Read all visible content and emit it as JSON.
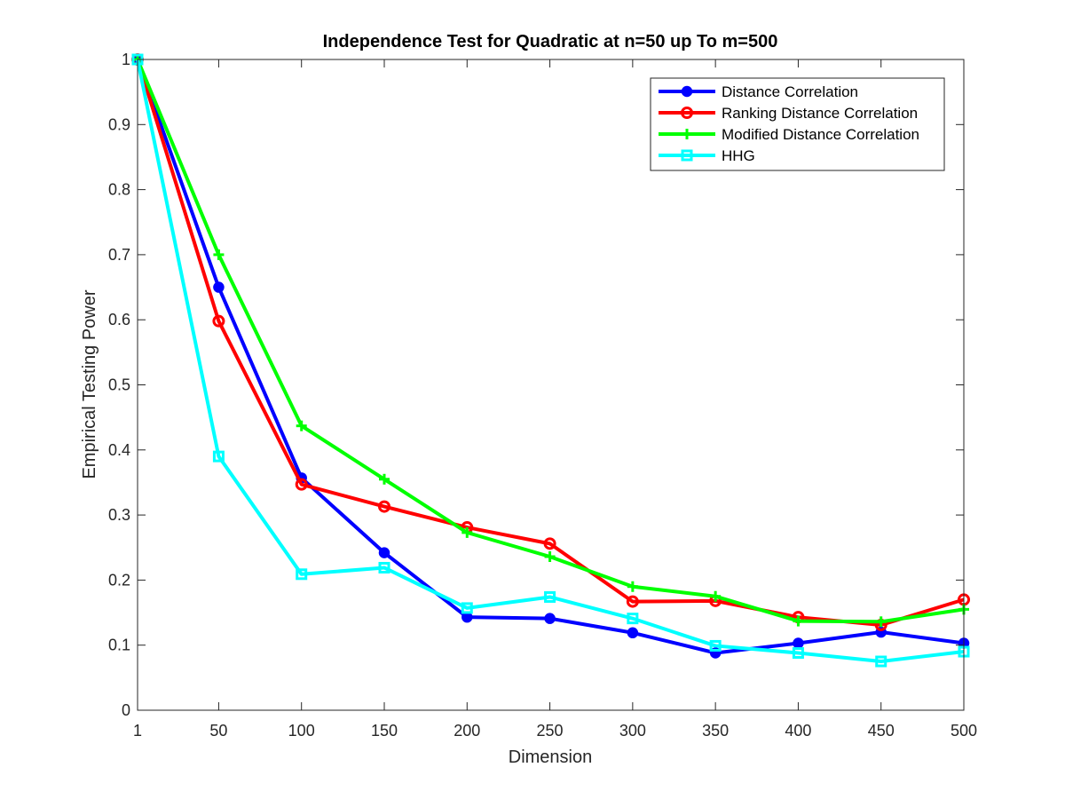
{
  "chart_data": {
    "type": "line",
    "title": "Independence Test for Quadratic at n=50 up To m=500",
    "xlabel": "Dimension",
    "ylabel": "Empirical Testing Power",
    "x": [
      1,
      50,
      100,
      150,
      200,
      250,
      300,
      350,
      400,
      450,
      500
    ],
    "x_ticks": [
      1,
      50,
      100,
      150,
      200,
      250,
      300,
      350,
      400,
      450,
      500
    ],
    "x_tick_labels": [
      "1",
      "50",
      "100",
      "150",
      "200",
      "250",
      "300",
      "350",
      "400",
      "450",
      "500"
    ],
    "y_ticks": [
      0,
      0.1,
      0.2,
      0.3,
      0.4,
      0.5,
      0.6,
      0.7,
      0.8,
      0.9,
      1
    ],
    "y_tick_labels": [
      "0",
      "0.1",
      "0.2",
      "0.3",
      "0.4",
      "0.5",
      "0.6",
      "0.7",
      "0.8",
      "0.9",
      "1"
    ],
    "xlim": [
      1,
      500
    ],
    "ylim": [
      0,
      1
    ],
    "grid": false,
    "legend_position": "top-right",
    "series": [
      {
        "name": "Distance Correlation",
        "color": "#0000ff",
        "marker": "filled-circle",
        "values": [
          1.0,
          0.65,
          0.357,
          0.242,
          0.143,
          0.141,
          0.119,
          0.088,
          0.103,
          0.12,
          0.103
        ]
      },
      {
        "name": "Ranking Distance Correlation",
        "color": "#ff0000",
        "marker": "open-circle",
        "values": [
          1.0,
          0.598,
          0.347,
          0.313,
          0.281,
          0.256,
          0.167,
          0.168,
          0.143,
          0.131,
          0.17
        ]
      },
      {
        "name": "Modified Distance Correlation",
        "color": "#00ff00",
        "marker": "plus",
        "values": [
          1.0,
          0.7,
          0.437,
          0.355,
          0.273,
          0.236,
          0.19,
          0.175,
          0.137,
          0.136,
          0.155
        ]
      },
      {
        "name": "HHG",
        "color": "#00ffff",
        "marker": "open-square",
        "values": [
          1.0,
          0.39,
          0.209,
          0.219,
          0.157,
          0.174,
          0.141,
          0.099,
          0.088,
          0.075,
          0.09
        ]
      }
    ]
  }
}
